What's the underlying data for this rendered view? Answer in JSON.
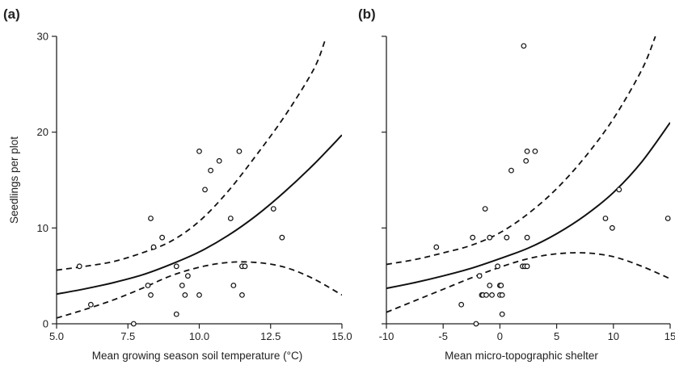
{
  "chart_data": [
    {
      "type": "scatter",
      "panel_label": "(a)",
      "xlabel": "Mean growing season soil temperature (°C)",
      "ylabel": "Seedlings per plot",
      "xlim": [
        5.0,
        15.0
      ],
      "ylim": [
        0,
        30
      ],
      "xticks": [
        5.0,
        7.5,
        10.0,
        12.5,
        15.0
      ],
      "xtick_labels": [
        "5.0",
        "7.5",
        "10.0",
        "12.5",
        "15.0"
      ],
      "yticks": [
        0,
        10,
        20,
        30
      ],
      "ytick_labels": [
        "0",
        "10",
        "20",
        "30"
      ],
      "grid": false,
      "points": {
        "x": [
          5.8,
          6.2,
          7.7,
          8.2,
          8.3,
          8.3,
          8.4,
          8.7,
          9.2,
          9.2,
          9.4,
          9.5,
          9.6,
          10.0,
          10.0,
          10.2,
          10.4,
          10.7,
          11.1,
          11.2,
          11.4,
          11.5,
          11.5,
          11.6,
          12.6,
          12.9
        ],
        "y": [
          6,
          2,
          0,
          4,
          3,
          11,
          8,
          9,
          6,
          1,
          4,
          3,
          5,
          18,
          3,
          14,
          16,
          17,
          11,
          4,
          18,
          3,
          6,
          6,
          12,
          9
        ]
      },
      "fit": {
        "x": [
          5.0,
          6.0,
          7.0,
          8.0,
          9.0,
          10.0,
          11.0,
          12.0,
          13.0,
          14.0,
          15.0
        ],
        "y": [
          3.1,
          3.65,
          4.3,
          5.1,
          6.2,
          7.5,
          9.2,
          11.3,
          13.8,
          16.6,
          19.7
        ]
      },
      "ci_upper": {
        "x": [
          5.0,
          6.0,
          7.0,
          8.0,
          9.0,
          10.0,
          11.0,
          12.0,
          13.0,
          14.0,
          14.4
        ],
        "y": [
          5.6,
          6.0,
          6.5,
          7.4,
          8.6,
          10.7,
          13.8,
          17.6,
          21.7,
          26.5,
          29.5
        ]
      },
      "ci_lower": {
        "x": [
          5.0,
          6.0,
          7.0,
          8.0,
          9.0,
          10.0,
          11.0,
          12.0,
          13.0,
          14.0,
          15.0
        ],
        "y": [
          0.6,
          1.5,
          2.5,
          3.7,
          5.0,
          5.9,
          6.4,
          6.4,
          5.9,
          4.7,
          3.0
        ]
      }
    },
    {
      "type": "scatter",
      "panel_label": "(b)",
      "xlabel": "Mean micro-topographic shelter",
      "ylabel": "",
      "xlim": [
        -10,
        15
      ],
      "ylim": [
        0,
        30
      ],
      "xticks": [
        -10,
        -5,
        0,
        5,
        10,
        15
      ],
      "xtick_labels": [
        "-10",
        "-5",
        "0",
        "5",
        "10",
        "15"
      ],
      "yticks": [
        0,
        10,
        20,
        30
      ],
      "ytick_labels": [
        "",
        "",
        "",
        ""
      ],
      "grid": false,
      "points": {
        "x": [
          -5.6,
          -3.4,
          -2.4,
          -2.1,
          -1.8,
          -1.6,
          -1.5,
          -1.3,
          -1.2,
          -0.9,
          -0.9,
          -0.7,
          -0.2,
          0.0,
          0.0,
          0.1,
          0.2,
          0.2,
          0.6,
          1.0,
          2.0,
          2.1,
          2.2,
          2.3,
          2.4,
          2.4,
          2.4,
          3.1,
          9.3,
          9.9,
          10.5,
          14.8
        ],
        "y": [
          8,
          2,
          9,
          0,
          5,
          3,
          3,
          12,
          3,
          4,
          9,
          3,
          6,
          3,
          4,
          4,
          1,
          3,
          9,
          16,
          6,
          29,
          6,
          17,
          9,
          18,
          6,
          18,
          11,
          10,
          14,
          11
        ]
      },
      "fit": {
        "x": [
          -10,
          -7.5,
          -5,
          -2.5,
          0,
          2.5,
          5,
          7.5,
          10,
          12.5,
          15
        ],
        "y": [
          3.7,
          4.3,
          5.0,
          5.8,
          6.8,
          7.9,
          9.4,
          11.3,
          13.7,
          16.9,
          21.0
        ]
      },
      "ci_upper": {
        "x": [
          -10,
          -7.5,
          -5,
          -2.5,
          0,
          2.5,
          5,
          7.5,
          10,
          12.5,
          13.7
        ],
        "y": [
          6.2,
          6.7,
          7.4,
          8.2,
          9.5,
          11.5,
          14.1,
          17.4,
          21.4,
          26.5,
          30.0
        ]
      },
      "ci_lower": {
        "x": [
          -10,
          -7.5,
          -5,
          -2.5,
          0,
          2.5,
          5,
          7.5,
          10,
          12.5,
          15
        ],
        "y": [
          1.2,
          2.4,
          3.6,
          4.8,
          5.9,
          6.8,
          7.3,
          7.4,
          7.0,
          6.0,
          4.7
        ]
      }
    }
  ]
}
